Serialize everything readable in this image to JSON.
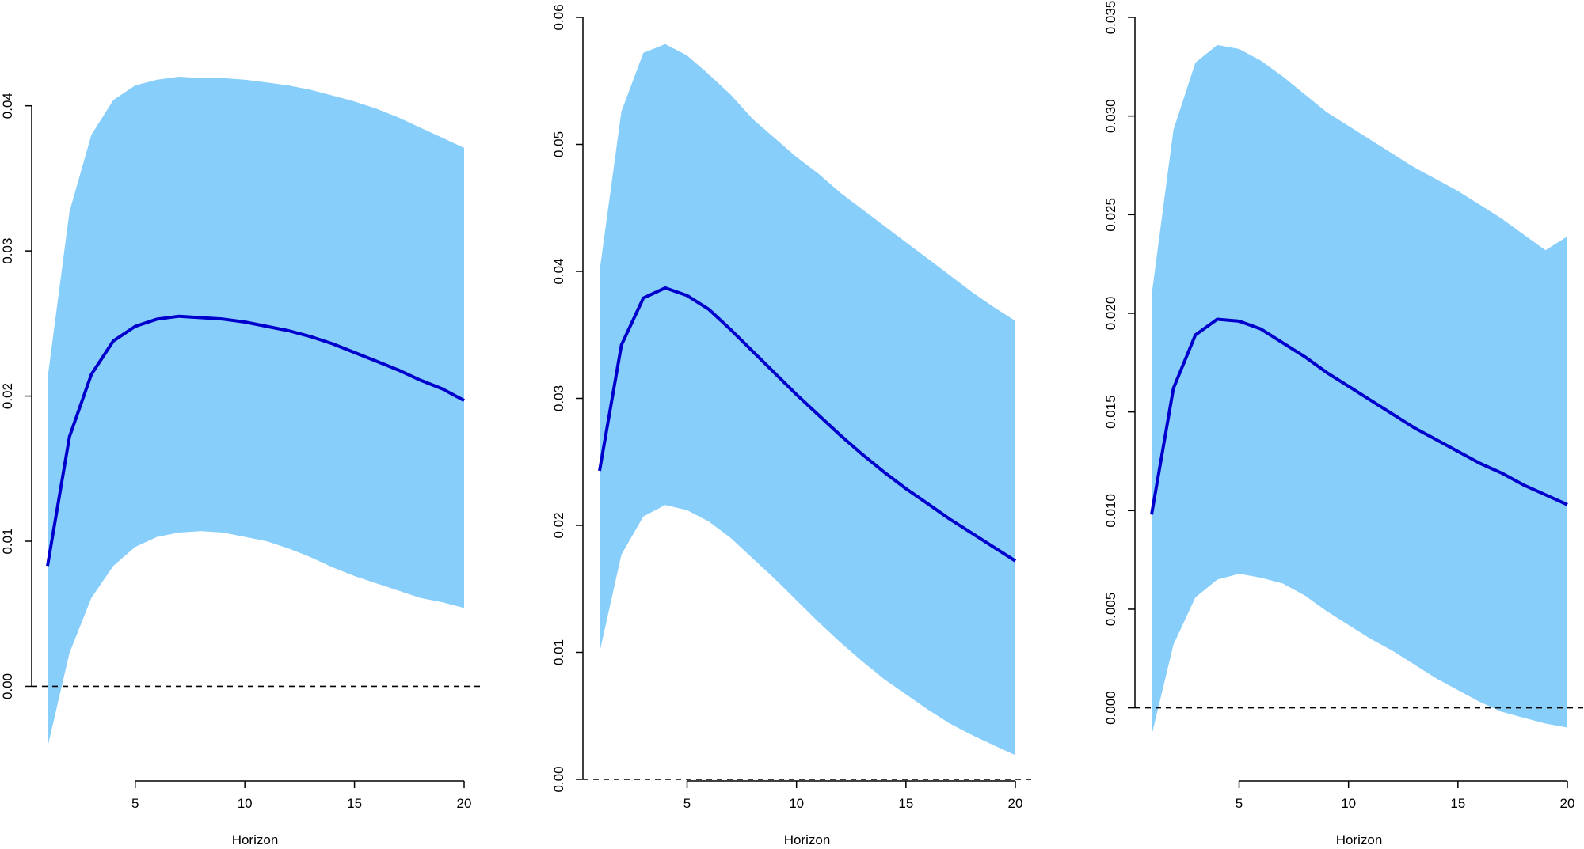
{
  "colors": {
    "band": "#87CEFA",
    "line": "#0000CD",
    "axis": "#000000",
    "zero_line": "#000000"
  },
  "chart_data": [
    {
      "type": "area",
      "xlabel": "Horizon",
      "ylabel": "",
      "xlim": [
        1,
        20
      ],
      "ylim": [
        -0.0045,
        0.042
      ],
      "x_ticks": [
        5,
        10,
        15,
        20
      ],
      "x_tick_labels": [
        "5",
        "10",
        "15",
        "20"
      ],
      "y_ticks": [
        0.0,
        0.01,
        0.02,
        0.03,
        0.04
      ],
      "y_tick_labels": [
        "0.00",
        "0.01",
        "0.02",
        "0.03",
        "0.04"
      ],
      "reference_line": 0,
      "x": [
        1,
        2,
        3,
        4,
        5,
        6,
        7,
        8,
        9,
        10,
        11,
        12,
        13,
        14,
        15,
        16,
        17,
        18,
        19,
        20
      ],
      "series": [
        {
          "role": "upper",
          "values": [
            0.0212,
            0.0327,
            0.038,
            0.0404,
            0.0414,
            0.0418,
            0.042,
            0.0419,
            0.0419,
            0.0418,
            0.0416,
            0.0414,
            0.0411,
            0.0407,
            0.0403,
            0.0398,
            0.0392,
            0.0385,
            0.0378,
            0.0371
          ]
        },
        {
          "role": "median",
          "values": [
            0.0083,
            0.0172,
            0.0215,
            0.0238,
            0.0248,
            0.0253,
            0.0255,
            0.0254,
            0.0253,
            0.0251,
            0.0248,
            0.0245,
            0.0241,
            0.0236,
            0.023,
            0.0224,
            0.0218,
            0.0211,
            0.0205,
            0.0197
          ]
        },
        {
          "role": "lower",
          "values": [
            -0.0042,
            0.0023,
            0.0061,
            0.0083,
            0.0096,
            0.0103,
            0.0106,
            0.0107,
            0.0106,
            0.0103,
            0.01,
            0.0095,
            0.0089,
            0.0082,
            0.0076,
            0.0071,
            0.0066,
            0.0061,
            0.0058,
            0.0054
          ]
        }
      ]
    },
    {
      "type": "area",
      "xlabel": "Horizon",
      "ylabel": "",
      "xlim": [
        1,
        20
      ],
      "ylim": [
        0.0,
        0.06
      ],
      "x_ticks": [
        5,
        10,
        15,
        20
      ],
      "x_tick_labels": [
        "5",
        "10",
        "15",
        "20"
      ],
      "y_ticks": [
        0.0,
        0.01,
        0.02,
        0.03,
        0.04,
        0.05,
        0.06
      ],
      "y_tick_labels": [
        "0.00",
        "0.01",
        "0.02",
        "0.03",
        "0.04",
        "0.05",
        "0.06"
      ],
      "reference_line": 0,
      "x": [
        1,
        2,
        3,
        4,
        5,
        6,
        7,
        8,
        9,
        10,
        11,
        12,
        13,
        14,
        15,
        16,
        17,
        18,
        19,
        20
      ],
      "series": [
        {
          "role": "upper",
          "values": [
            0.04,
            0.0526,
            0.0572,
            0.0579,
            0.057,
            0.0555,
            0.0539,
            0.052,
            0.0505,
            0.049,
            0.0477,
            0.0462,
            0.0449,
            0.0436,
            0.0423,
            0.041,
            0.0397,
            0.0384,
            0.0372,
            0.0361
          ]
        },
        {
          "role": "median",
          "values": [
            0.0243,
            0.0342,
            0.0379,
            0.0387,
            0.0381,
            0.037,
            0.0354,
            0.0337,
            0.032,
            0.0303,
            0.0287,
            0.0271,
            0.0256,
            0.0242,
            0.0229,
            0.0217,
            0.0205,
            0.0194,
            0.0183,
            0.0172
          ]
        },
        {
          "role": "lower",
          "values": [
            0.01,
            0.0177,
            0.0207,
            0.0216,
            0.0212,
            0.0203,
            0.019,
            0.0174,
            0.0158,
            0.0141,
            0.0124,
            0.0108,
            0.0093,
            0.0079,
            0.0067,
            0.0055,
            0.0044,
            0.0035,
            0.0027,
            0.0019
          ]
        }
      ]
    },
    {
      "type": "area",
      "xlabel": "Horizon",
      "ylabel": "",
      "xlim": [
        1,
        20
      ],
      "ylim": [
        -0.0015,
        0.035
      ],
      "x_ticks": [
        5,
        10,
        15,
        20
      ],
      "x_tick_labels": [
        "5",
        "10",
        "15",
        "20"
      ],
      "y_ticks": [
        0.0,
        0.005,
        0.01,
        0.015,
        0.02,
        0.025,
        0.03,
        0.035
      ],
      "y_tick_labels": [
        "0.000",
        "0.005",
        "0.010",
        "0.015",
        "0.020",
        "0.025",
        "0.030",
        "0.035"
      ],
      "reference_line": 0,
      "x": [
        1,
        2,
        3,
        4,
        5,
        6,
        7,
        8,
        9,
        10,
        11,
        12,
        13,
        14,
        15,
        16,
        17,
        18,
        19,
        20
      ],
      "series": [
        {
          "role": "upper",
          "values": [
            0.0209,
            0.0293,
            0.0327,
            0.0336,
            0.0334,
            0.0328,
            0.032,
            0.0311,
            0.0302,
            0.0295,
            0.0288,
            0.0281,
            0.0274,
            0.0268,
            0.0262,
            0.0255,
            0.0248,
            0.024,
            0.0232,
            0.0239
          ]
        },
        {
          "role": "median",
          "values": [
            0.0098,
            0.0162,
            0.0189,
            0.0197,
            0.0196,
            0.0192,
            0.0185,
            0.0178,
            0.017,
            0.0163,
            0.0156,
            0.0149,
            0.0142,
            0.0136,
            0.013,
            0.0124,
            0.0119,
            0.0113,
            0.0108,
            0.0103
          ]
        },
        {
          "role": "lower",
          "values": [
            -0.0014,
            0.0032,
            0.0056,
            0.0065,
            0.0068,
            0.0066,
            0.0063,
            0.0057,
            0.0049,
            0.0042,
            0.0035,
            0.0029,
            0.0022,
            0.0015,
            0.0009,
            0.0003,
            -0.0002,
            -0.0005,
            -0.0008,
            -0.001
          ]
        }
      ]
    }
  ]
}
